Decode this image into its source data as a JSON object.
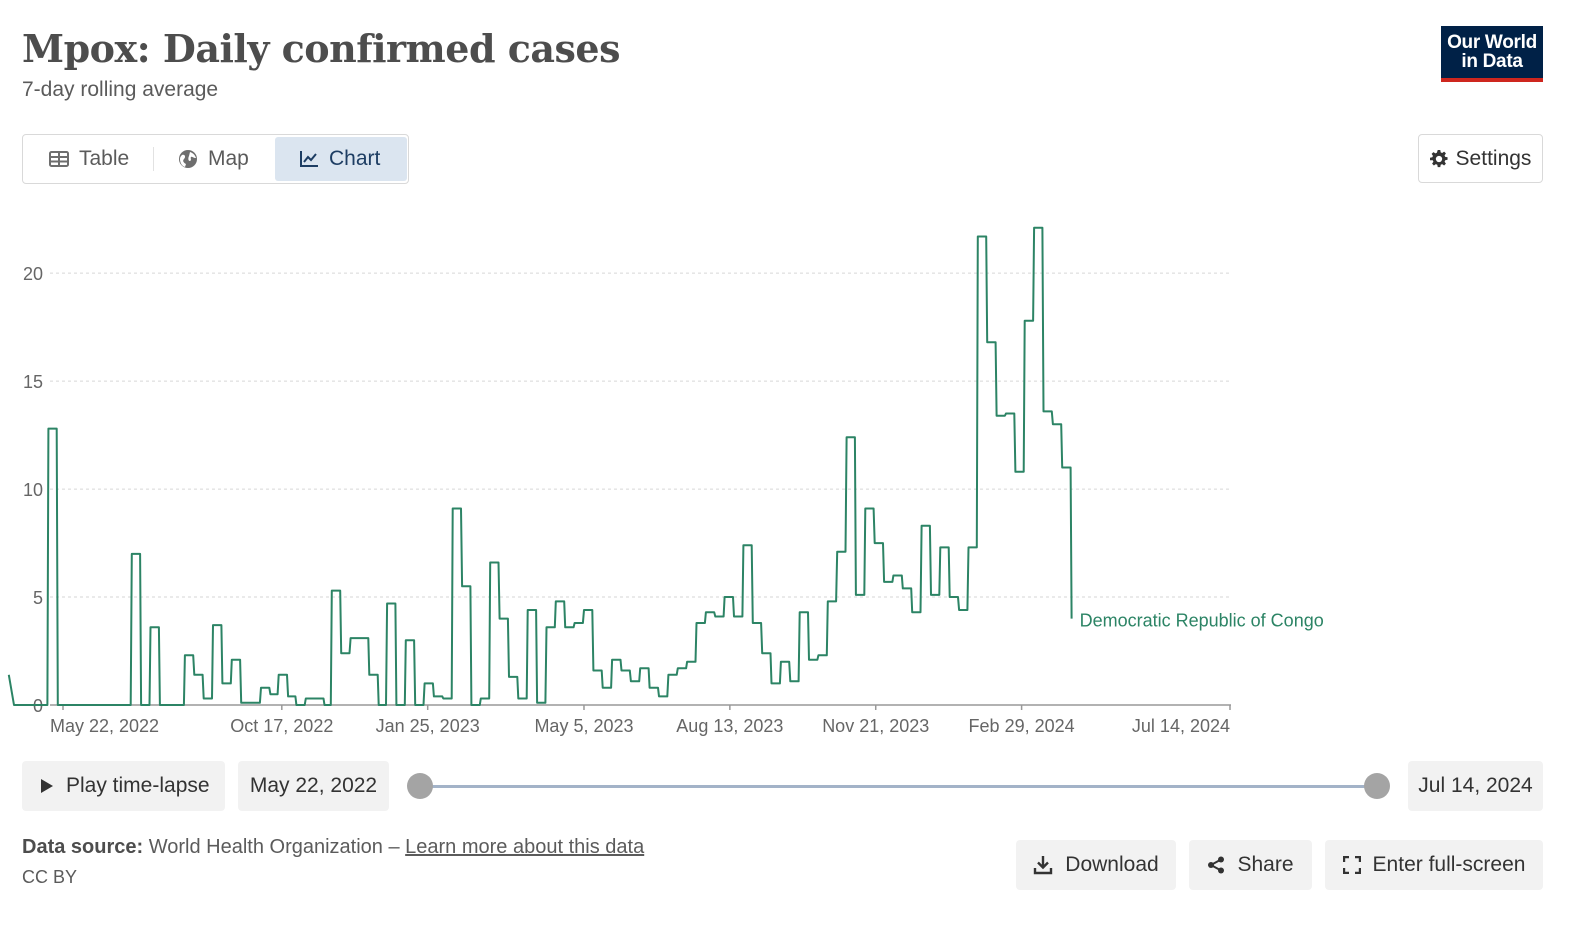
{
  "header": {
    "title": "Mpox: Daily confirmed cases",
    "subtitle": "7-day rolling average",
    "logo_line1": "Our World",
    "logo_line2": "in Data"
  },
  "tabs": [
    {
      "label": "Table",
      "icon": "table-icon"
    },
    {
      "label": "Map",
      "icon": "globe-icon"
    },
    {
      "label": "Chart",
      "icon": "line-chart-icon",
      "active": true
    }
  ],
  "settings_label": "Settings",
  "timeline": {
    "play_label": "Play time-lapse",
    "start_date": "May 22, 2022",
    "end_date": "Jul 14, 2024"
  },
  "footer": {
    "source_label": "Data source:",
    "source_text": "World Health Organization –",
    "source_link": "Learn more about this data",
    "license": "CC BY"
  },
  "actions": {
    "download": "Download",
    "share": "Share",
    "fullscreen": "Enter full-screen"
  },
  "colors": {
    "series": "#2c8465",
    "brand": "#002147",
    "brand_accent": "#ce261e",
    "active_tab": "#dbe5f0"
  },
  "chart_data": {
    "type": "line",
    "title": "Mpox: Daily confirmed cases",
    "subtitle": "7-day rolling average",
    "xlabel": "",
    "ylabel": "",
    "ylim": [
      0,
      22
    ],
    "xlim_week": [
      0,
      112
    ],
    "y_ticks": [
      0,
      5,
      10,
      15,
      20
    ],
    "x_ticks": [
      {
        "week": 0,
        "label": "May 22, 2022"
      },
      {
        "week": 21,
        "label": "Oct 17, 2022"
      },
      {
        "week": 35,
        "label": "Jan 25, 2023"
      },
      {
        "week": 50,
        "label": "May 5, 2023"
      },
      {
        "week": 64,
        "label": "Aug 13, 2023"
      },
      {
        "week": 78,
        "label": "Nov 21, 2023"
      },
      {
        "week": 92,
        "label": "Feb 29, 2024"
      },
      {
        "week": 112,
        "label": "Jul 14, 2024"
      }
    ],
    "series": [
      {
        "name": "Democratic Republic of Congo",
        "label": "Democratic Republic of Congo",
        "step_points": [
          [
            -5.2,
            1.4
          ],
          [
            -4.7,
            0
          ],
          [
            -1.5,
            0
          ],
          [
            -1.4,
            12.8
          ],
          [
            -0.6,
            12.8
          ],
          [
            -0.5,
            0
          ],
          [
            6.5,
            0
          ],
          [
            6.6,
            7
          ],
          [
            7.4,
            7
          ],
          [
            7.5,
            0
          ],
          [
            8.3,
            0
          ],
          [
            8.4,
            3.6
          ],
          [
            9.2,
            3.6
          ],
          [
            9.3,
            0
          ],
          [
            11.6,
            0
          ],
          [
            11.7,
            2.3
          ],
          [
            12.5,
            2.3
          ],
          [
            12.6,
            1.4
          ],
          [
            13.4,
            1.4
          ],
          [
            13.5,
            0.3
          ],
          [
            14.3,
            0.3
          ],
          [
            14.4,
            3.7
          ],
          [
            15.2,
            3.7
          ],
          [
            15.3,
            1
          ],
          [
            16.1,
            1
          ],
          [
            16.2,
            2.1
          ],
          [
            17,
            2.1
          ],
          [
            17.1,
            0.1
          ],
          [
            18.9,
            0.1
          ],
          [
            19,
            0.8
          ],
          [
            19.8,
            0.8
          ],
          [
            19.9,
            0.5
          ],
          [
            20.6,
            0.5
          ],
          [
            20.7,
            1.4
          ],
          [
            21.5,
            1.4
          ],
          [
            21.6,
            0.4
          ],
          [
            22.3,
            0.4
          ],
          [
            22.4,
            0
          ],
          [
            23.2,
            0
          ],
          [
            23.3,
            0.3
          ],
          [
            25,
            0.3
          ],
          [
            25.1,
            0
          ],
          [
            25.7,
            0
          ],
          [
            25.8,
            5.3
          ],
          [
            26.6,
            5.3
          ],
          [
            26.7,
            2.4
          ],
          [
            27.5,
            2.4
          ],
          [
            27.6,
            3.1
          ],
          [
            29.3,
            3.1
          ],
          [
            29.4,
            1.4
          ],
          [
            30.2,
            1.4
          ],
          [
            30.3,
            0
          ],
          [
            31,
            0
          ],
          [
            31.1,
            4.7
          ],
          [
            31.9,
            4.7
          ],
          [
            32,
            0
          ],
          [
            32.8,
            0
          ],
          [
            32.9,
            3
          ],
          [
            33.7,
            3
          ],
          [
            33.8,
            0
          ],
          [
            34.6,
            0
          ],
          [
            34.7,
            1
          ],
          [
            35.5,
            1
          ],
          [
            35.6,
            0.4
          ],
          [
            36.4,
            0.4
          ],
          [
            36.5,
            0.3
          ],
          [
            37.3,
            0.3
          ],
          [
            37.4,
            9.1
          ],
          [
            38.2,
            9.1
          ],
          [
            38.3,
            5.5
          ],
          [
            39.1,
            5.5
          ],
          [
            39.2,
            0
          ],
          [
            40,
            0
          ],
          [
            40.1,
            0.3
          ],
          [
            40.9,
            0.3
          ],
          [
            41,
            6.6
          ],
          [
            41.8,
            6.6
          ],
          [
            41.9,
            4
          ],
          [
            42.7,
            4
          ],
          [
            42.8,
            1.3
          ],
          [
            43.6,
            1.3
          ],
          [
            43.7,
            0.3
          ],
          [
            44.5,
            0.3
          ],
          [
            44.6,
            4.4
          ],
          [
            45.4,
            4.4
          ],
          [
            45.5,
            0.1
          ],
          [
            46.3,
            0.1
          ],
          [
            46.4,
            3.6
          ],
          [
            47.2,
            3.6
          ],
          [
            47.3,
            4.8
          ],
          [
            48.1,
            4.8
          ],
          [
            48.2,
            3.6
          ],
          [
            49,
            3.6
          ],
          [
            49.1,
            3.8
          ],
          [
            49.9,
            3.8
          ],
          [
            50,
            4.4
          ],
          [
            50.8,
            4.4
          ],
          [
            50.9,
            1.6
          ],
          [
            51.7,
            1.6
          ],
          [
            51.8,
            0.8
          ],
          [
            52.6,
            0.8
          ],
          [
            52.7,
            2.1
          ],
          [
            53.5,
            2.1
          ],
          [
            53.6,
            1.6
          ],
          [
            54.4,
            1.6
          ],
          [
            54.5,
            1.1
          ],
          [
            55.3,
            1.1
          ],
          [
            55.4,
            1.7
          ],
          [
            56.2,
            1.7
          ],
          [
            56.3,
            0.8
          ],
          [
            57.1,
            0.8
          ],
          [
            57.2,
            0.4
          ],
          [
            58,
            0.4
          ],
          [
            58.1,
            1.4
          ],
          [
            58.9,
            1.4
          ],
          [
            59,
            1.7
          ],
          [
            59.8,
            1.7
          ],
          [
            59.9,
            2
          ],
          [
            60.7,
            2
          ],
          [
            60.8,
            3.8
          ],
          [
            61.6,
            3.8
          ],
          [
            61.7,
            4.3
          ],
          [
            62.5,
            4.3
          ],
          [
            62.6,
            4.1
          ],
          [
            63.4,
            4.1
          ],
          [
            63.5,
            5
          ],
          [
            64.3,
            5
          ],
          [
            64.4,
            4.1
          ],
          [
            65.2,
            4.1
          ],
          [
            65.3,
            7.4
          ],
          [
            66.1,
            7.4
          ],
          [
            66.2,
            3.8
          ],
          [
            67,
            3.8
          ],
          [
            67.1,
            2.4
          ],
          [
            67.9,
            2.4
          ],
          [
            68,
            1
          ],
          [
            68.8,
            1
          ],
          [
            68.9,
            2
          ],
          [
            69.7,
            2
          ],
          [
            69.8,
            1.1
          ],
          [
            70.6,
            1.1
          ],
          [
            70.7,
            4.3
          ],
          [
            71.5,
            4.3
          ],
          [
            71.6,
            2.1
          ],
          [
            72.4,
            2.1
          ],
          [
            72.5,
            2.3
          ],
          [
            73.3,
            2.3
          ],
          [
            73.4,
            4.8
          ],
          [
            74.2,
            4.8
          ],
          [
            74.3,
            7.1
          ],
          [
            75.1,
            7.1
          ],
          [
            75.2,
            12.4
          ],
          [
            76,
            12.4
          ],
          [
            76.1,
            5.1
          ],
          [
            76.9,
            5.1
          ],
          [
            77,
            9.1
          ],
          [
            77.8,
            9.1
          ],
          [
            77.9,
            7.5
          ],
          [
            78.7,
            7.5
          ],
          [
            78.8,
            5.7
          ],
          [
            79.6,
            5.7
          ],
          [
            79.7,
            6
          ],
          [
            80.5,
            6
          ],
          [
            80.6,
            5.4
          ],
          [
            81.4,
            5.4
          ],
          [
            81.5,
            4.3
          ],
          [
            82.3,
            4.3
          ],
          [
            82.4,
            8.3
          ],
          [
            83.2,
            8.3
          ],
          [
            83.3,
            5.1
          ],
          [
            84.1,
            5.1
          ],
          [
            84.2,
            7.3
          ],
          [
            85,
            7.3
          ],
          [
            85.1,
            5
          ],
          [
            85.9,
            5
          ],
          [
            86,
            4.4
          ],
          [
            86.8,
            4.4
          ],
          [
            86.9,
            7.3
          ],
          [
            87.7,
            7.3
          ],
          [
            87.8,
            21.7
          ],
          [
            88.6,
            21.7
          ],
          [
            88.7,
            16.8
          ],
          [
            89.5,
            16.8
          ],
          [
            89.6,
            13.4
          ],
          [
            90.4,
            13.4
          ],
          [
            90.5,
            13.5
          ],
          [
            91.3,
            13.5
          ],
          [
            91.4,
            10.8
          ],
          [
            92.2,
            10.8
          ],
          [
            92.3,
            17.8
          ],
          [
            93.1,
            17.8
          ],
          [
            93.2,
            22.1
          ],
          [
            94,
            22.1
          ],
          [
            94.1,
            13.6
          ],
          [
            94.9,
            13.6
          ],
          [
            95,
            13
          ],
          [
            95.8,
            13
          ],
          [
            95.9,
            11
          ],
          [
            96.7,
            11
          ],
          [
            96.8,
            4
          ]
        ]
      }
    ]
  }
}
